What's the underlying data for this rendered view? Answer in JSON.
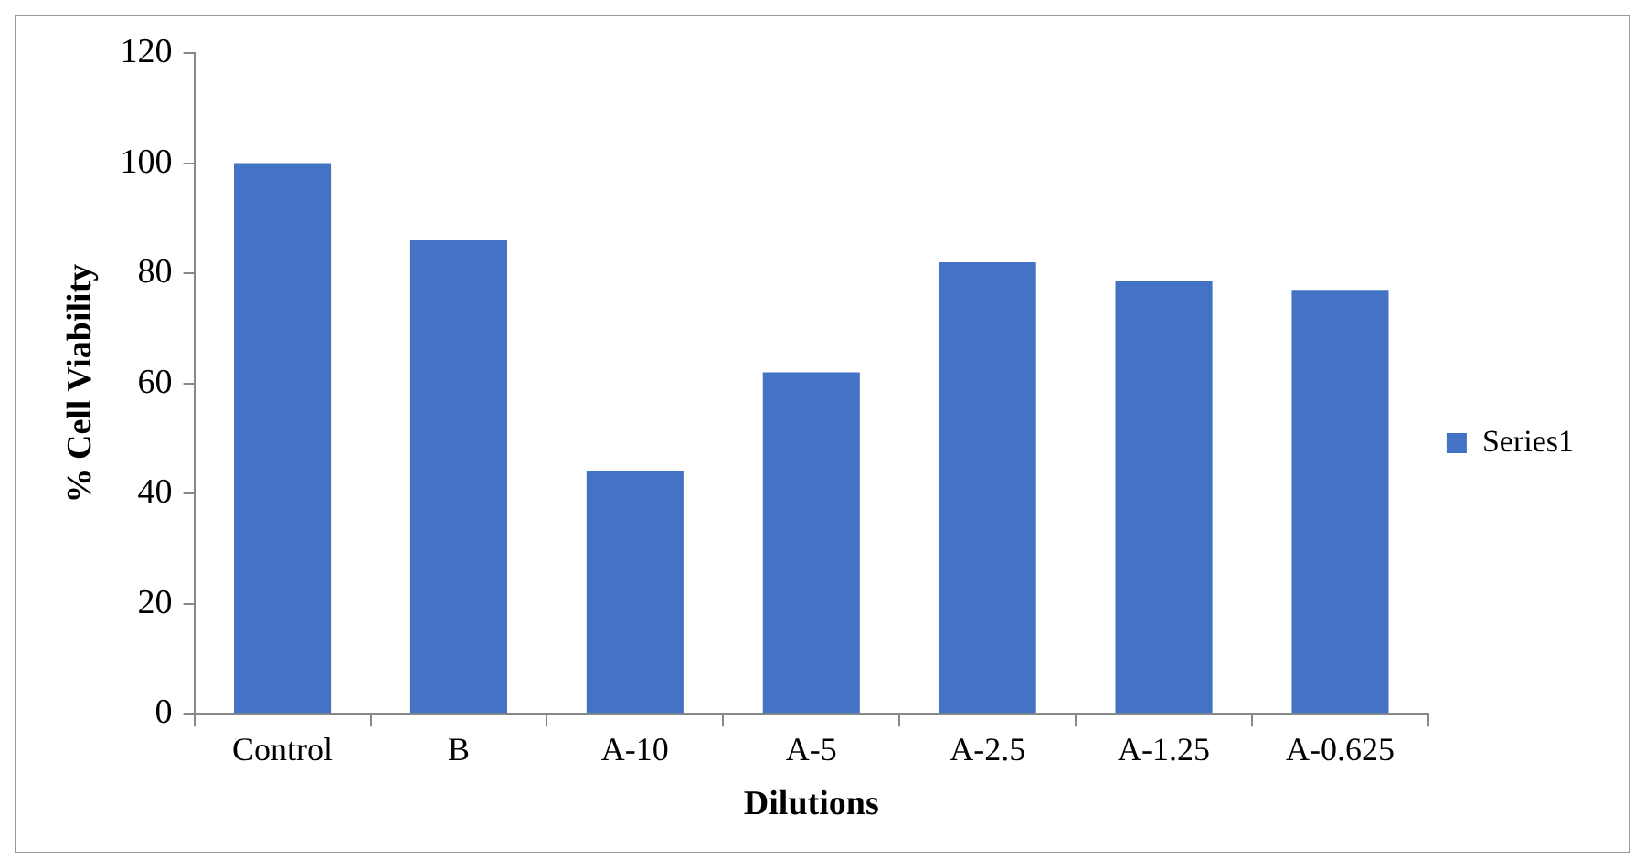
{
  "chart_data": {
    "type": "bar",
    "xlabel": "Dilutions",
    "ylabel": "% Cell Viability",
    "categories": [
      "Control",
      "B",
      "A-10",
      "A-5",
      "A-2.5",
      "A-1.25",
      "A-0.625"
    ],
    "series": [
      {
        "name": "Series1",
        "color": "#4472c4",
        "values": [
          100,
          86,
          44,
          62,
          82,
          78.5,
          77
        ]
      }
    ],
    "ylim": [
      0,
      120
    ],
    "yticks": [
      0,
      20,
      40,
      60,
      80,
      100,
      120
    ],
    "grid": false,
    "legend": "right"
  }
}
